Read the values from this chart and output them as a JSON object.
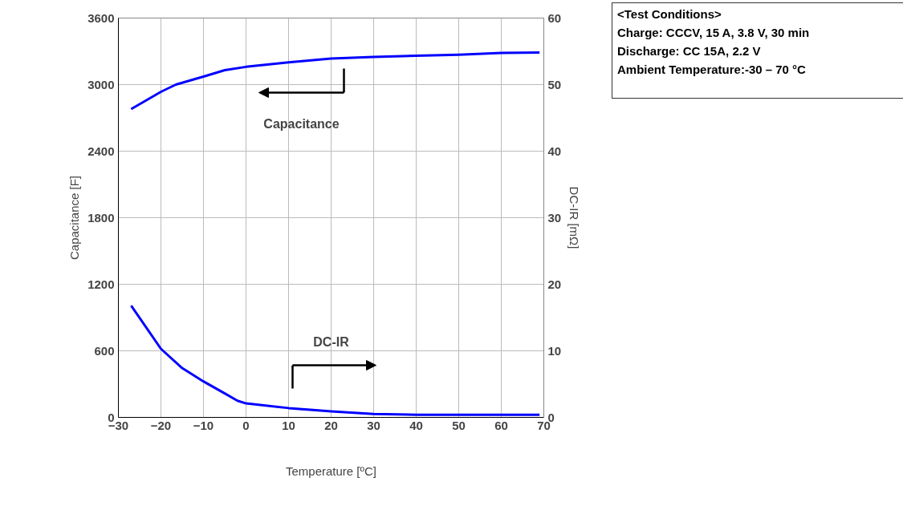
{
  "chart_data": {
    "type": "line",
    "xlabel": "Temperature [ºC]",
    "ylabel": "Capacitance [F]",
    "y2label": "DC-IR [mΩ]",
    "xlim": [
      -30,
      70
    ],
    "xticks": [
      -30,
      -20,
      -10,
      0,
      10,
      20,
      30,
      40,
      50,
      60,
      70
    ],
    "ylim": [
      0,
      3600
    ],
    "yticks": [
      0,
      600,
      1200,
      1800,
      2400,
      3000,
      3600
    ],
    "y2lim": [
      0,
      60
    ],
    "y2ticks": [
      0,
      10,
      20,
      30,
      40,
      50,
      60
    ],
    "grid": true,
    "marker": "none",
    "line_style": "solid",
    "series": [
      {
        "color": "#0000ff",
        "x": [
          -27,
          -20,
          -16.5,
          -10,
          -5,
          0,
          10,
          20,
          30,
          40,
          50,
          60,
          69
        ],
        "values": [
          2780,
          2935,
          3000,
          3072,
          3130,
          3160,
          3200,
          3235,
          3250,
          3260,
          3270,
          3285,
          3290
        ]
      },
      {
        "color": "#0000ff",
        "axis": "y2",
        "x": [
          -27,
          -20,
          -15,
          -10,
          -5,
          -2,
          0,
          10,
          20,
          30,
          40,
          50,
          60,
          69
        ],
        "values": [
          16.8,
          10.3,
          7.4,
          5.4,
          3.6,
          2.5,
          2.1,
          1.4,
          0.9,
          0.5,
          0.4,
          0.4,
          0.4,
          0.4
        ]
      }
    ],
    "annotations": [
      "Capacitance",
      "DC-IR",
      "<Test Conditions>",
      "Charge: CCCV, 15 A, 3.8 V, 30 min",
      "Discharge: CC 15A, 2.2 V",
      "Ambient Temperature:-30 – 70 °C"
    ]
  }
}
